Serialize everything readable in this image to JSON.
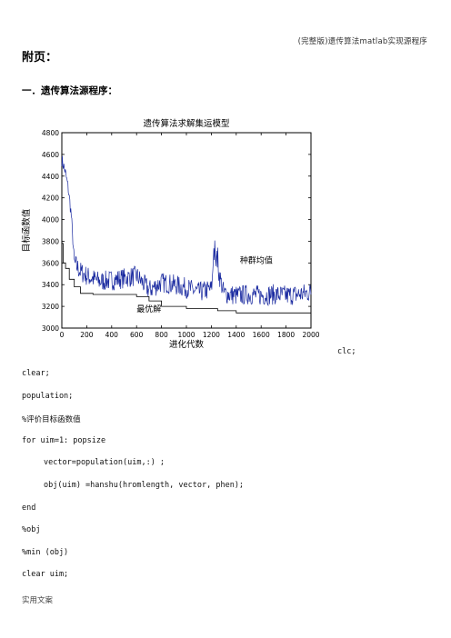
{
  "doc": {
    "header_note": "(完整版)遗传算法matlab实现源程序",
    "appendix_title": "附页：",
    "section_title": "一．遗传算法源程序：",
    "footer_note": "实用文案"
  },
  "code_lines": [
    {
      "text": "clc;",
      "indent": 0
    },
    {
      "text": "clear;",
      "indent": 0
    },
    {
      "text": "population;",
      "indent": 0
    },
    {
      "text": "%评价目标函数值",
      "indent": 0
    },
    {
      "text": "for uim=1: popsize",
      "indent": 0
    },
    {
      "text": "vector=population(uim,:) ;",
      "indent": 1
    },
    {
      "text": "obj(uim) =hanshu(hromlength, vector, phen);",
      "indent": 1
    },
    {
      "text": "end",
      "indent": 0
    },
    {
      "text": "%obj",
      "indent": 0
    },
    {
      "text": "%min (obj)",
      "indent": 0
    },
    {
      "text": "clear uim;",
      "indent": 0
    }
  ],
  "chart_data": {
    "type": "line",
    "title": "遗传算法求解集运模型",
    "xlabel": "进化代数",
    "ylabel": "目标函数值",
    "xlim": [
      0,
      2000
    ],
    "ylim": [
      3000,
      4800
    ],
    "xticks": [
      0,
      200,
      400,
      600,
      800,
      1000,
      1200,
      1400,
      1600,
      1800,
      2000
    ],
    "yticks": [
      3000,
      3200,
      3400,
      3600,
      3800,
      4000,
      4200,
      4400,
      4600,
      4800
    ],
    "grid": false,
    "annotations": [
      {
        "text": "种群均值",
        "x": 1430,
        "y": 3600
      },
      {
        "text": "最优解",
        "x": 600,
        "y": 3150
      }
    ],
    "series": [
      {
        "name": "种群均值",
        "color": "#1a2aa0",
        "x": [
          0,
          25,
          50,
          75,
          100,
          150,
          200,
          300,
          400,
          500,
          600,
          700,
          800,
          900,
          1000,
          1100,
          1200,
          1230,
          1300,
          1400,
          1500,
          1600,
          1700,
          1800,
          1900,
          2000
        ],
        "y": [
          4550,
          4450,
          4300,
          4050,
          3600,
          3520,
          3480,
          3430,
          3440,
          3460,
          3480,
          3350,
          3420,
          3400,
          3370,
          3330,
          3360,
          3650,
          3320,
          3300,
          3310,
          3300,
          3310,
          3300,
          3310,
          3330
        ]
      },
      {
        "name": "最优解",
        "color": "#000000",
        "x": [
          0,
          10,
          30,
          60,
          100,
          150,
          250,
          600,
          700,
          800,
          1000,
          1250,
          1400,
          2000
        ],
        "y": [
          3780,
          3600,
          3550,
          3450,
          3380,
          3320,
          3310,
          3290,
          3250,
          3200,
          3180,
          3160,
          3140,
          3140
        ]
      }
    ]
  }
}
